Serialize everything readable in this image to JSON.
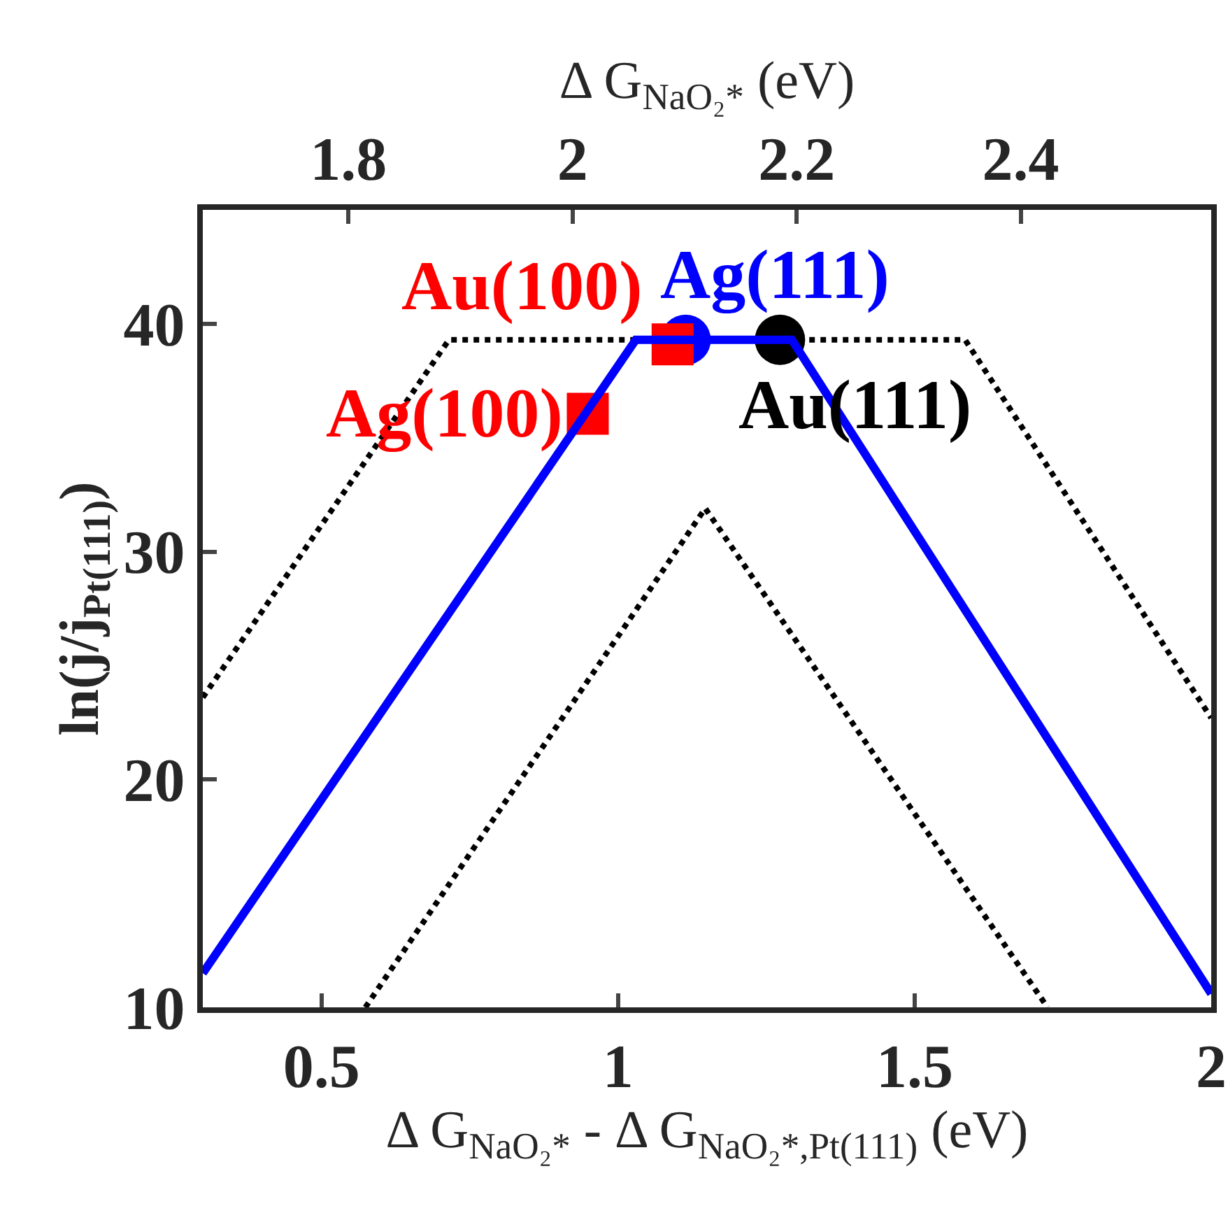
{
  "chart_data": {
    "type": "line",
    "xlabel": "Δ G$_{NaO₂*}$ - Δ G$_{NaO₂*,Pt(111)}$ (eV)",
    "x2label": "Δ G$_{NaO₂*}$ (eV)",
    "ylabel": "ln(j/j$_{Pt(111)}$)",
    "xlim": [
      0.3,
      2
    ],
    "xticks": [
      0.5,
      1,
      1.5,
      2
    ],
    "x2lim": [
      1.67,
      2.57
    ],
    "x2ticks": [
      1.8,
      2,
      2.2,
      2.4
    ],
    "ylim": [
      10,
      45
    ],
    "yticks": [
      10,
      20,
      30,
      40
    ],
    "series": [
      {
        "type": "line",
        "color": "#000000",
        "line_style": "dotted",
        "marker": "none",
        "x": [
          0.3,
          0.715,
          1.585,
          2
        ],
        "values": [
          23.6,
          39.3,
          39.3,
          22.7
        ]
      },
      {
        "type": "line",
        "color": "#000000",
        "line_style": "dotted",
        "marker": "none",
        "x": [
          0.574,
          1.147,
          1.724
        ],
        "values": [
          10,
          31.9,
          10
        ]
      },
      {
        "type": "line",
        "color": "#0000ff",
        "line_style": "solid",
        "marker": "none",
        "x": [
          0.3,
          1.03,
          1.293,
          2
        ],
        "values": [
          11.5,
          39.3,
          39.3,
          10.6
        ]
      },
      {
        "type": "scatter",
        "name": "Ag(100)",
        "color": "#ff0000",
        "marker": "square",
        "x": [
          0.949
        ],
        "values": [
          36.05
        ]
      },
      {
        "type": "scatter",
        "name": "Ag(111)",
        "color": "#0000ff",
        "marker": "circle",
        "x": [
          1.114
        ],
        "values": [
          39.3
        ]
      },
      {
        "type": "scatter",
        "name": "Au(100)",
        "color": "#ff0000",
        "marker": "square",
        "x": [
          1.092
        ],
        "values": [
          39.1
        ]
      },
      {
        "type": "scatter",
        "name": "Au(111)",
        "color": "#000000",
        "marker": "circle",
        "x": [
          1.273
        ],
        "values": [
          39.3
        ]
      }
    ]
  }
}
